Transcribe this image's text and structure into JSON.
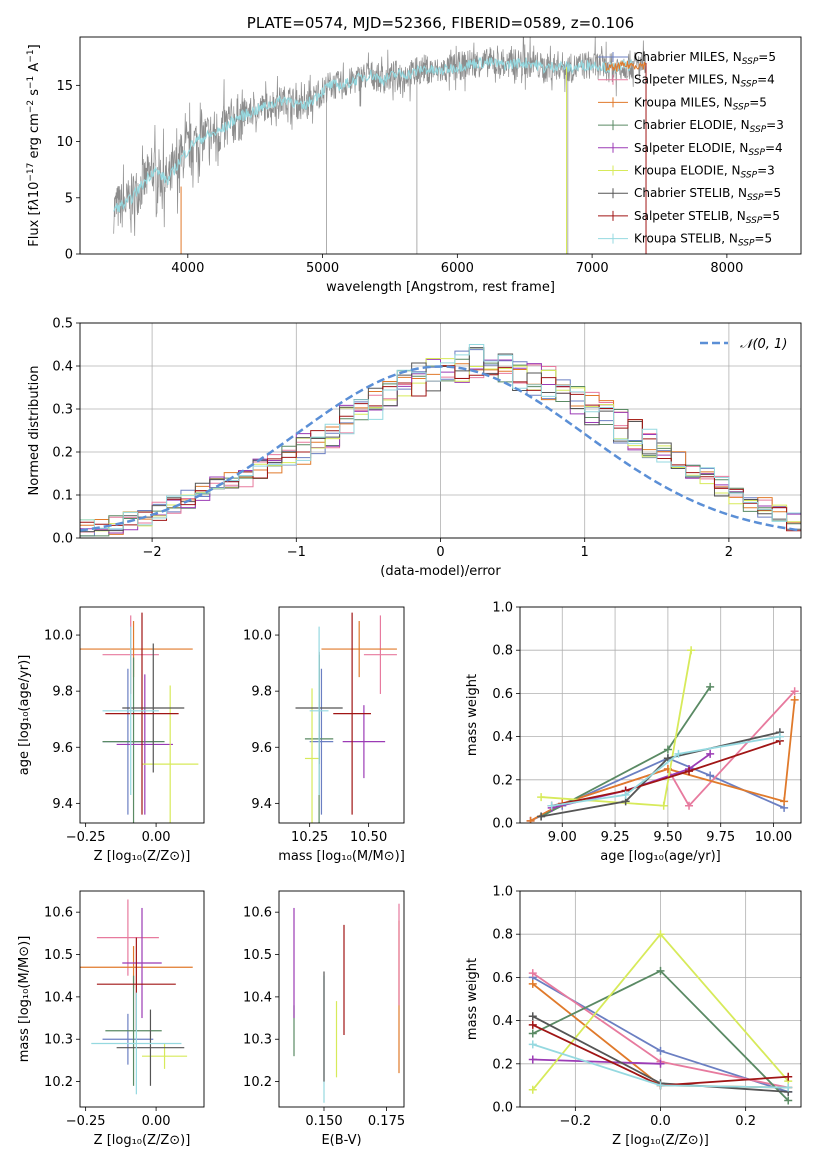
{
  "colors": {
    "Chabrier MILES": "#6b7fc2",
    "Salpeter MILES": "#e77a9e",
    "Kroupa MILES": "#e07a2b",
    "Chabrier ELODIE": "#5a8a64",
    "Salpeter ELODIE": "#9b3bb5",
    "Kroupa ELODIE": "#d7ea5a",
    "Chabrier STELIB": "#555555",
    "Salpeter STELIB": "#a01515",
    "Kroupa STELIB": "#95d9e0",
    "normal": "#5b8fd6"
  },
  "chart_data": [
    {
      "type": "line",
      "title": "PLATE=0574, MJD=52366, FIBERID=0589, z=0.106",
      "xlabel": "wavelength [Angstrom, rest frame]",
      "ylabel": "Flux [fλ10⁻¹⁷ erg cm⁻² s⁻¹ A⁻¹]",
      "xlim": [
        3200,
        8550
      ],
      "ylim": [
        0,
        19.3
      ],
      "xticks": [
        4000,
        5000,
        6000,
        7000,
        8000
      ],
      "yticks": [
        0,
        5,
        10,
        15
      ],
      "legend_position": "right",
      "spectrum_x": [
        3450,
        3550,
        3650,
        3750,
        3850,
        3950,
        4050,
        4150,
        4250,
        4350,
        4450,
        4550,
        4650,
        4750,
        4850,
        4950,
        5050,
        5150,
        5250,
        5350,
        5450,
        5550,
        5650,
        5750,
        5850,
        5950,
        6050,
        6150,
        6250,
        6350,
        6450,
        6550,
        6650,
        6750,
        6850,
        6950,
        7050,
        7150,
        7250,
        7350,
        7400
      ],
      "spectrum_y": [
        4.0,
        4.5,
        6.0,
        7.5,
        6.5,
        8.5,
        10.0,
        10.5,
        11.0,
        12.0,
        12.5,
        13.0,
        13.5,
        13.8,
        13.0,
        14.0,
        15.0,
        15.0,
        15.5,
        16.0,
        15.5,
        16.0,
        16.0,
        16.5,
        16.2,
        16.5,
        16.8,
        17.0,
        17.0,
        16.8,
        17.0,
        17.0,
        16.5,
        16.8,
        16.5,
        16.8,
        16.8,
        16.5,
        16.8,
        16.8,
        16.8
      ],
      "legend": [
        {
          "name": "Chabrier MILES",
          "label": "Chabrier MILES, N",
          "sub": "SSP",
          "n": "=5"
        },
        {
          "name": "Salpeter MILES",
          "label": "Salpeter MILES, N",
          "sub": "SSP",
          "n": "=4"
        },
        {
          "name": "Kroupa MILES",
          "label": "Kroupa MILES, N",
          "sub": "SSP",
          "n": "=5"
        },
        {
          "name": "Chabrier ELODIE",
          "label": "Chabrier ELODIE, N",
          "sub": "SSP",
          "n": "=3"
        },
        {
          "name": "Salpeter ELODIE",
          "label": "Salpeter ELODIE, N",
          "sub": "SSP",
          "n": "=4"
        },
        {
          "name": "Kroupa ELODIE",
          "label": "Kroupa ELODIE, N",
          "sub": "SSP",
          "n": "=3"
        },
        {
          "name": "Chabrier STELIB",
          "label": "Chabrier STELIB, N",
          "sub": "SSP",
          "n": "=5"
        },
        {
          "name": "Salpeter STELIB",
          "label": "Salpeter STELIB, N",
          "sub": "SSP",
          "n": "=5"
        },
        {
          "name": "Kroupa STELIB",
          "label": "Kroupa STELIB, N",
          "sub": "SSP",
          "n": "=5"
        }
      ]
    },
    {
      "type": "bar",
      "xlabel": "(data-model)/error",
      "ylabel": "Normed distribution",
      "xlim": [
        -2.5,
        2.5
      ],
      "ylim": [
        0,
        0.5
      ],
      "xticks": [
        -2,
        -1,
        0,
        1,
        2
      ],
      "yticks": [
        0.0,
        0.1,
        0.2,
        0.3,
        0.4,
        0.5
      ],
      "grid": true,
      "legend_label": "𝒩(0, 1)",
      "legend_position": "top-right",
      "bin_edges_start": -2.5,
      "bin_width": 0.1,
      "histogram": [
        0.02,
        0.025,
        0.03,
        0.04,
        0.05,
        0.06,
        0.075,
        0.09,
        0.105,
        0.12,
        0.13,
        0.14,
        0.16,
        0.175,
        0.19,
        0.21,
        0.23,
        0.245,
        0.27,
        0.29,
        0.31,
        0.34,
        0.36,
        0.37,
        0.38,
        0.39,
        0.4,
        0.41,
        0.4,
        0.39,
        0.38,
        0.37,
        0.36,
        0.34,
        0.32,
        0.3,
        0.28,
        0.26,
        0.24,
        0.22,
        0.2,
        0.18,
        0.16,
        0.14,
        0.12,
        0.1,
        0.085,
        0.07,
        0.055,
        0.04
      ]
    },
    {
      "type": "scatter",
      "xlabel": "Z [log₁₀(Z/Z⊙)]",
      "ylabel": "age  [log₁₀(age/yr)]",
      "xlim": [
        -0.27,
        0.17
      ],
      "ylim": [
        9.33,
        10.1
      ],
      "xticks": [
        -0.25,
        0.0
      ],
      "yticks": [
        9.4,
        9.6,
        9.8,
        10.0
      ],
      "points": [
        {
          "name": "Chabrier MILES",
          "x": -0.1,
          "y": 9.62,
          "xerr": 0.09,
          "yerr": 0.26
        },
        {
          "name": "Salpeter MILES",
          "x": -0.09,
          "y": 9.93,
          "xerr": 0.1,
          "yerr": 0.14
        },
        {
          "name": "Kroupa MILES",
          "x": -0.08,
          "y": 9.95,
          "xerr": 0.21,
          "yerr": 0.1
        },
        {
          "name": "Chabrier ELODIE",
          "x": -0.08,
          "y": 9.62,
          "xerr": 0.11,
          "yerr": 0.3
        },
        {
          "name": "Salpeter ELODIE",
          "x": -0.04,
          "y": 9.61,
          "xerr": 0.1,
          "yerr": 0.25
        },
        {
          "name": "Kroupa ELODIE",
          "x": 0.05,
          "y": 9.54,
          "xerr": 0.1,
          "yerr": 0.28
        },
        {
          "name": "Chabrier STELIB",
          "x": -0.01,
          "y": 9.74,
          "xerr": 0.11,
          "yerr": 0.23
        },
        {
          "name": "Salpeter STELIB",
          "x": -0.05,
          "y": 9.72,
          "xerr": 0.13,
          "yerr": 0.36
        },
        {
          "name": "Kroupa STELIB",
          "x": -0.09,
          "y": 9.73,
          "xerr": 0.1,
          "yerr": 0.3
        }
      ]
    },
    {
      "type": "scatter",
      "xlabel": "mass [log₁₀(M/M⊙)]",
      "xlim": [
        10.12,
        10.65
      ],
      "ylim": [
        9.33,
        10.1
      ],
      "xticks": [
        10.25,
        10.5
      ],
      "yticks": [
        9.4,
        9.6,
        9.8,
        10.0
      ],
      "points": [
        {
          "name": "Chabrier MILES",
          "x": 10.3,
          "y": 9.62,
          "xerr": 0.05,
          "yerr": 0.26
        },
        {
          "name": "Salpeter MILES",
          "x": 10.55,
          "y": 9.93,
          "xerr": 0.07,
          "yerr": 0.14
        },
        {
          "name": "Kroupa MILES",
          "x": 10.46,
          "y": 9.95,
          "xerr": 0.16,
          "yerr": 0.1
        },
        {
          "name": "Chabrier ELODIE",
          "x": 10.29,
          "y": 9.63,
          "xerr": 0.06,
          "yerr": 0.3
        },
        {
          "name": "Salpeter ELODIE",
          "x": 10.48,
          "y": 9.62,
          "xerr": 0.09,
          "yerr": 0.13
        },
        {
          "name": "Kroupa ELODIE",
          "x": 10.26,
          "y": 9.56,
          "xerr": 0.03,
          "yerr": 0.25
        },
        {
          "name": "Chabrier STELIB",
          "x": 10.29,
          "y": 9.74,
          "xerr": 0.1,
          "yerr": 0.2
        },
        {
          "name": "Salpeter STELIB",
          "x": 10.43,
          "y": 9.72,
          "xerr": 0.08,
          "yerr": 0.36
        },
        {
          "name": "Kroupa STELIB",
          "x": 10.29,
          "y": 9.73,
          "xerr": 0.04,
          "yerr": 0.3
        }
      ]
    },
    {
      "type": "line",
      "xlabel": "age  [log₁₀(age/yr)]",
      "ylabel": "mass weight",
      "xlim": [
        8.8,
        10.13
      ],
      "ylim": [
        0,
        1
      ],
      "xticks": [
        9.0,
        9.25,
        9.5,
        9.75,
        10.0
      ],
      "yticks": [
        0.0,
        0.2,
        0.4,
        0.6,
        0.8,
        1.0
      ],
      "grid": true,
      "series": [
        {
          "name": "Chabrier MILES",
          "x": [
            8.85,
            9.0,
            9.5,
            9.7,
            10.05
          ],
          "y": [
            0.01,
            0.08,
            0.3,
            0.22,
            0.07
          ]
        },
        {
          "name": "Salpeter MILES",
          "x": [
            8.85,
            9.0,
            9.5,
            9.6,
            10.1
          ],
          "y": [
            0.01,
            0.09,
            0.25,
            0.08,
            0.61
          ]
        },
        {
          "name": "Kroupa MILES",
          "x": [
            8.85,
            9.0,
            9.5,
            10.05,
            10.1
          ],
          "y": [
            0.01,
            0.09,
            0.25,
            0.1,
            0.57
          ]
        },
        {
          "name": "Chabrier ELODIE",
          "x": [
            8.9,
            9.5,
            9.7
          ],
          "y": [
            0.03,
            0.34,
            0.63
          ]
        },
        {
          "name": "Salpeter ELODIE",
          "x": [
            8.95,
            9.3,
            9.6,
            9.7
          ],
          "y": [
            0.07,
            0.15,
            0.25,
            0.32
          ]
        },
        {
          "name": "Kroupa ELODIE",
          "x": [
            8.9,
            9.48,
            9.61
          ],
          "y": [
            0.12,
            0.08,
            0.8
          ]
        },
        {
          "name": "Chabrier STELIB",
          "x": [
            8.9,
            9.3,
            9.5,
            10.03
          ],
          "y": [
            0.03,
            0.1,
            0.3,
            0.42
          ]
        },
        {
          "name": "Salpeter STELIB",
          "x": [
            8.95,
            9.3,
            9.6,
            10.03
          ],
          "y": [
            0.08,
            0.15,
            0.24,
            0.38
          ]
        },
        {
          "name": "Kroupa STELIB",
          "x": [
            8.95,
            9.3,
            9.55,
            10.03
          ],
          "y": [
            0.08,
            0.13,
            0.32,
            0.4
          ]
        }
      ]
    },
    {
      "type": "scatter",
      "xlabel": "Z [log₁₀(Z/Z⊙)]",
      "ylabel": "mass [log₁₀(M/M⊙)]",
      "xlim": [
        -0.27,
        0.17
      ],
      "ylim": [
        10.14,
        10.65
      ],
      "xticks": [
        -0.25,
        0.0
      ],
      "yticks": [
        10.2,
        10.3,
        10.4,
        10.5,
        10.6
      ],
      "points": [
        {
          "name": "Chabrier MILES",
          "x": -0.1,
          "y": 10.3,
          "xerr": 0.09,
          "yerr": 0.06
        },
        {
          "name": "Salpeter MILES",
          "x": -0.1,
          "y": 10.54,
          "xerr": 0.11,
          "yerr": 0.09
        },
        {
          "name": "Kroupa MILES",
          "x": -0.08,
          "y": 10.47,
          "xerr": 0.21,
          "yerr": 0.05
        },
        {
          "name": "Chabrier ELODIE",
          "x": -0.08,
          "y": 10.32,
          "xerr": 0.1,
          "yerr": 0.13
        },
        {
          "name": "Salpeter ELODIE",
          "x": -0.05,
          "y": 10.48,
          "xerr": 0.07,
          "yerr": 0.13
        },
        {
          "name": "Kroupa ELODIE",
          "x": 0.03,
          "y": 10.26,
          "xerr": 0.08,
          "yerr": 0.03
        },
        {
          "name": "Chabrier STELIB",
          "x": -0.02,
          "y": 10.28,
          "xerr": 0.12,
          "yerr": 0.09
        },
        {
          "name": "Salpeter STELIB",
          "x": -0.07,
          "y": 10.43,
          "xerr": 0.14,
          "yerr": 0.11
        },
        {
          "name": "Kroupa STELIB",
          "x": -0.07,
          "y": 10.29,
          "xerr": 0.16,
          "yerr": 0.12
        }
      ]
    },
    {
      "type": "scatter",
      "xlabel": "E(B-V)",
      "xlim": [
        0.132,
        0.182
      ],
      "ylim": [
        10.14,
        10.65
      ],
      "xticks": [
        0.15,
        0.175
      ],
      "yticks": [
        10.2,
        10.3,
        10.4,
        10.5,
        10.6
      ],
      "points": [
        {
          "name": "Chabrier ELODIE",
          "x": 0.138,
          "y": 10.32,
          "yerr": 0.06
        },
        {
          "name": "Salpeter ELODIE",
          "x": 0.138,
          "y": 10.48,
          "yerr": 0.13
        },
        {
          "name": "Kroupa STELIB",
          "x": 0.15,
          "y": 10.3,
          "yerr": 0.15
        },
        {
          "name": "Chabrier STELIB",
          "x": 0.15,
          "y": 10.33,
          "yerr": 0.13
        },
        {
          "name": "Kroupa ELODIE",
          "x": 0.155,
          "y": 10.3,
          "yerr": 0.09
        },
        {
          "name": "Salpeter STELIB",
          "x": 0.158,
          "y": 10.44,
          "yerr": 0.13
        },
        {
          "name": "Kroupa MILES",
          "x": 0.18,
          "y": 10.4,
          "yerr": 0.18
        },
        {
          "name": "Salpeter MILES",
          "x": 0.18,
          "y": 10.5,
          "yerr": 0.12
        }
      ]
    },
    {
      "type": "line",
      "xlabel": "Z [log₁₀(Z/Z⊙)]",
      "ylabel": "mass weight",
      "xlim": [
        -0.33,
        0.33
      ],
      "ylim": [
        0,
        1
      ],
      "xticks": [
        -0.2,
        0.0,
        0.2
      ],
      "yticks": [
        0.0,
        0.2,
        0.4,
        0.6,
        0.8,
        1.0
      ],
      "grid": true,
      "series": [
        {
          "name": "Chabrier MILES",
          "x": [
            -0.3,
            0.0,
            0.3
          ],
          "y": [
            0.6,
            0.26,
            0.07
          ]
        },
        {
          "name": "Salpeter MILES",
          "x": [
            -0.3,
            0.0,
            0.3
          ],
          "y": [
            0.62,
            0.21,
            0.09
          ]
        },
        {
          "name": "Kroupa MILES",
          "x": [
            -0.3,
            0.0,
            0.3
          ],
          "y": [
            0.57,
            0.1,
            0.09
          ]
        },
        {
          "name": "Chabrier ELODIE",
          "x": [
            -0.3,
            0.0,
            0.3
          ],
          "y": [
            0.34,
            0.63,
            0.03
          ]
        },
        {
          "name": "Salpeter ELODIE",
          "x": [
            -0.3,
            0.0
          ],
          "y": [
            0.22,
            0.2
          ]
        },
        {
          "name": "Kroupa ELODIE",
          "x": [
            -0.3,
            0.0,
            0.3
          ],
          "y": [
            0.08,
            0.8,
            0.12
          ]
        },
        {
          "name": "Chabrier STELIB",
          "x": [
            -0.3,
            0.0,
            0.3
          ],
          "y": [
            0.42,
            0.11,
            0.07
          ]
        },
        {
          "name": "Salpeter STELIB",
          "x": [
            -0.3,
            0.0,
            0.3
          ],
          "y": [
            0.38,
            0.1,
            0.14
          ]
        },
        {
          "name": "Kroupa STELIB",
          "x": [
            -0.3,
            0.0,
            0.3
          ],
          "y": [
            0.29,
            0.1,
            0.09
          ]
        }
      ]
    }
  ]
}
